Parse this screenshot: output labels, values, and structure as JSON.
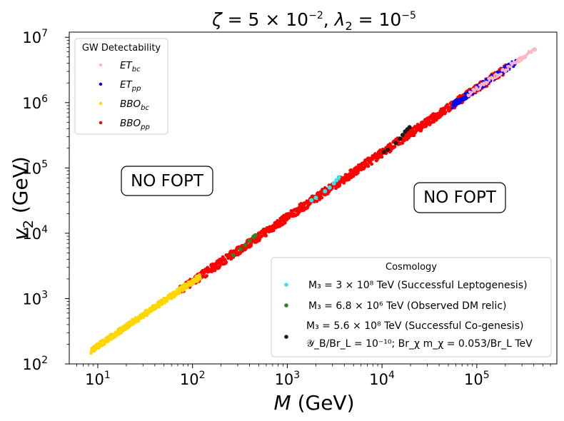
{
  "chart_data": {
    "type": "scatter",
    "title": "ζ = 5 × 10⁻², λ₂ = 10⁻⁵",
    "xlabel": "M (GeV)",
    "ylabel": "v₂ (GeV)",
    "xscale": "log",
    "yscale": "log",
    "xlim": [
      5,
      700000
    ],
    "ylim": [
      100,
      12000000
    ],
    "xticks": [
      {
        "value": 10,
        "base": "10",
        "exp": "1"
      },
      {
        "value": 100,
        "base": "10",
        "exp": "2"
      },
      {
        "value": 1000,
        "base": "10",
        "exp": "3"
      },
      {
        "value": 10000,
        "base": "10",
        "exp": "4"
      },
      {
        "value": 100000,
        "base": "10",
        "exp": "5"
      }
    ],
    "yticks": [
      {
        "value": 100,
        "base": "10",
        "exp": "2"
      },
      {
        "value": 1000,
        "base": "10",
        "exp": "3"
      },
      {
        "value": 10000,
        "base": "10",
        "exp": "4"
      },
      {
        "value": 100000,
        "base": "10",
        "exp": "5"
      },
      {
        "value": 1000000,
        "base": "10",
        "exp": "6"
      },
      {
        "value": 10000000,
        "base": "10",
        "exp": "7"
      }
    ],
    "gw_legend_title": "GW Detectability",
    "gw_series": [
      {
        "name": "ET_bc",
        "label_main": "ET",
        "label_sub": "bc",
        "color": "#ffb6c1",
        "x_range": [
          80000,
          420000
        ],
        "y_range": [
          2800000,
          6800000
        ]
      },
      {
        "name": "ET_pp",
        "label_main": "ET",
        "label_sub": "pp",
        "color": "#0000ff",
        "x_range": [
          55000,
          260000
        ],
        "y_range": [
          1700000,
          5000000
        ]
      },
      {
        "name": "BBO_bc",
        "label_main": "BBO",
        "label_sub": "bc",
        "color": "#ffd700",
        "x_range": [
          8.5,
          120
        ],
        "y_range": [
          165,
          2100
        ]
      },
      {
        "name": "BBO_pp",
        "label_main": "BBO",
        "label_sub": "pp",
        "color": "#ff0000",
        "x_range": [
          75,
          200000
        ],
        "y_range": [
          1500,
          3800000
        ]
      }
    ],
    "cosmo_legend_title": "Cosmology",
    "cosmo_series": [
      {
        "name": "leptogenesis",
        "label": "M₃ = 3 × 10⁸ TeV (Successful Leptogenesis)",
        "color": "#33e6ee",
        "points": [
          [
            1800,
            32000
          ],
          [
            2000,
            35000
          ],
          [
            2500,
            44000
          ],
          [
            2800,
            50000
          ],
          [
            3100,
            58000
          ],
          [
            3300,
            65000
          ],
          [
            3500,
            72000
          ]
        ]
      },
      {
        "name": "dm-relic",
        "label": "M₃ = 6.8 × 10⁶ TeV (Observed DM relic)",
        "color": "#228b22",
        "points": [
          [
            270,
            4600
          ],
          [
            320,
            5700
          ],
          [
            360,
            6600
          ],
          [
            400,
            7600
          ],
          [
            440,
            8800
          ],
          [
            460,
            9300
          ]
        ]
      },
      {
        "name": "co-genesis",
        "label_line1": "M₃ = 5.6 × 10⁸ TeV (Successful Co-genesis)",
        "label_line2": "𝒴_B/Br_L = 10⁻¹⁰;  Br_χ m_χ = 0.053/Br_L TeV",
        "color": "#1a1a1a",
        "points": [
          [
            10500,
            175000
          ],
          [
            11500,
            190000
          ],
          [
            14000,
            240000
          ],
          [
            15500,
            280000
          ],
          [
            16500,
            320000
          ],
          [
            17500,
            360000
          ],
          [
            18500,
            390000
          ],
          [
            19500,
            420000
          ]
        ]
      }
    ],
    "annotations": [
      {
        "text": "NO FOPT",
        "x": 35,
        "y": 60000
      },
      {
        "text": "NO FOPT",
        "x": 40000,
        "y": 30000
      }
    ]
  }
}
